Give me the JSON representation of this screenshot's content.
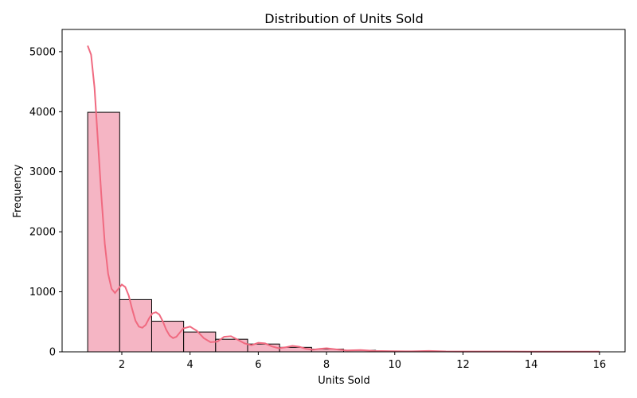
{
  "chart_data": {
    "type": "bar",
    "subtype": "histogram-with-kde",
    "title": "Distribution of Units Sold",
    "xlabel": "Units Sold",
    "ylabel": "Frequency",
    "xlim": [
      0.25,
      16.75
    ],
    "ylim": [
      0,
      5370
    ],
    "x_ticks": [
      2,
      4,
      6,
      8,
      10,
      12,
      14,
      16
    ],
    "y_ticks": [
      0,
      1000,
      2000,
      3000,
      4000,
      5000
    ],
    "bin_width": 0.9375,
    "bins": [
      {
        "start": 1.0,
        "end": 1.9375,
        "count": 3990
      },
      {
        "start": 1.9375,
        "end": 2.875,
        "count": 870
      },
      {
        "start": 2.875,
        "end": 3.8125,
        "count": 510
      },
      {
        "start": 3.8125,
        "end": 4.75,
        "count": 330
      },
      {
        "start": 4.75,
        "end": 5.6875,
        "count": 210
      },
      {
        "start": 5.6875,
        "end": 6.625,
        "count": 130
      },
      {
        "start": 6.625,
        "end": 7.5625,
        "count": 75
      },
      {
        "start": 7.5625,
        "end": 8.5,
        "count": 45
      },
      {
        "start": 8.5,
        "end": 9.4375,
        "count": 25
      },
      {
        "start": 9.4375,
        "end": 10.375,
        "count": 12
      },
      {
        "start": 10.375,
        "end": 11.3125,
        "count": 10
      },
      {
        "start": 11.3125,
        "end": 12.25,
        "count": 5
      },
      {
        "start": 12.25,
        "end": 13.1875,
        "count": 4
      },
      {
        "start": 13.1875,
        "end": 14.125,
        "count": 2
      },
      {
        "start": 14.125,
        "end": 15.0625,
        "count": 2
      },
      {
        "start": 15.0625,
        "end": 16.0,
        "count": 1
      }
    ],
    "kde": [
      [
        1.0,
        5100
      ],
      [
        1.1,
        4950
      ],
      [
        1.2,
        4400
      ],
      [
        1.3,
        3500
      ],
      [
        1.4,
        2600
      ],
      [
        1.5,
        1800
      ],
      [
        1.6,
        1300
      ],
      [
        1.7,
        1050
      ],
      [
        1.8,
        980
      ],
      [
        1.9,
        1050
      ],
      [
        2.0,
        1120
      ],
      [
        2.1,
        1080
      ],
      [
        2.2,
        940
      ],
      [
        2.3,
        720
      ],
      [
        2.4,
        520
      ],
      [
        2.5,
        420
      ],
      [
        2.6,
        400
      ],
      [
        2.7,
        450
      ],
      [
        2.8,
        560
      ],
      [
        2.9,
        640
      ],
      [
        3.0,
        660
      ],
      [
        3.1,
        620
      ],
      [
        3.2,
        510
      ],
      [
        3.3,
        370
      ],
      [
        3.4,
        270
      ],
      [
        3.5,
        230
      ],
      [
        3.6,
        250
      ],
      [
        3.7,
        320
      ],
      [
        3.8,
        390
      ],
      [
        4.0,
        420
      ],
      [
        4.2,
        350
      ],
      [
        4.4,
        230
      ],
      [
        4.6,
        160
      ],
      [
        4.8,
        170
      ],
      [
        5.0,
        250
      ],
      [
        5.2,
        260
      ],
      [
        5.4,
        200
      ],
      [
        5.6,
        140
      ],
      [
        5.8,
        110
      ],
      [
        6.0,
        150
      ],
      [
        6.2,
        140
      ],
      [
        6.4,
        90
      ],
      [
        6.6,
        60
      ],
      [
        6.8,
        75
      ],
      [
        7.0,
        100
      ],
      [
        7.2,
        85
      ],
      [
        7.4,
        50
      ],
      [
        7.6,
        35
      ],
      [
        7.8,
        50
      ],
      [
        8.0,
        60
      ],
      [
        8.3,
        40
      ],
      [
        8.6,
        22
      ],
      [
        9.0,
        30
      ],
      [
        9.4,
        15
      ],
      [
        10.0,
        10
      ],
      [
        10.5,
        8
      ],
      [
        11.0,
        15
      ],
      [
        11.5,
        6
      ],
      [
        12.0,
        5
      ],
      [
        13.0,
        5
      ],
      [
        14.0,
        3
      ],
      [
        15.0,
        3
      ],
      [
        16.0,
        2
      ]
    ],
    "colors": {
      "bar_fill": "#f5b5c4",
      "bar_edge": "#000000",
      "kde_line": "#f06a80",
      "axis": "#000000"
    },
    "grid": false,
    "legend": "none"
  }
}
